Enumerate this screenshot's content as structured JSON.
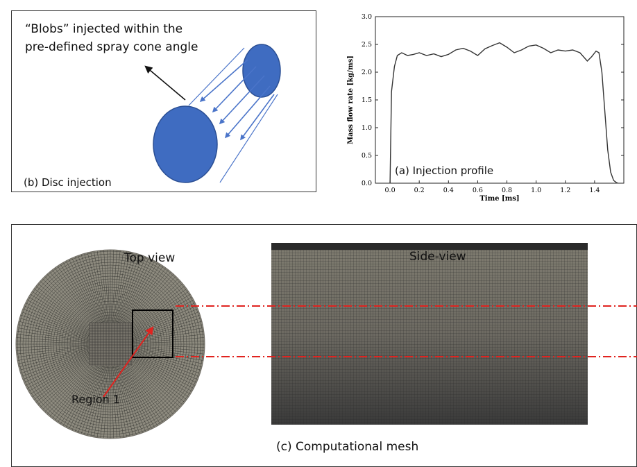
{
  "disc_panel": {
    "callout_line1": "“Blobs” injected within the",
    "callout_line2": "pre-defined  spray cone angle",
    "caption": "(b) Disc injection"
  },
  "colors": {
    "disc_fill": "#3f6cc1",
    "disc_stroke": "#2b4f94",
    "arrow": "#4a74c9",
    "mesh_bg": "#8d8a7e",
    "mesh_line": "#2c2c2c",
    "highlight": "#e0231f"
  },
  "chart_data": {
    "type": "line",
    "title": "",
    "annotation": "(a) Injection profile",
    "xlabel": "Time [ms]",
    "ylabel": "Mass flow rate [kg/ms]",
    "xlim": [
      -0.1,
      1.6
    ],
    "ylim": [
      0.0,
      3.0
    ],
    "xticks": [
      "0.0",
      "0.2",
      "0.4",
      "0.6",
      "0.8",
      "1.0",
      "1.2",
      "1.4"
    ],
    "yticks": [
      "0.0",
      "0.5",
      "1.0",
      "1.5",
      "2.0",
      "2.5",
      "3.0"
    ],
    "grid": false,
    "series": [
      {
        "x": [
          0.0,
          0.01,
          0.03,
          0.05,
          0.08,
          0.12,
          0.16,
          0.2,
          0.25,
          0.3,
          0.35,
          0.4,
          0.45,
          0.5,
          0.55,
          0.6,
          0.65,
          0.7,
          0.75,
          0.8,
          0.85,
          0.9,
          0.95,
          1.0,
          1.05,
          1.1,
          1.15,
          1.2,
          1.25,
          1.3,
          1.35,
          1.38,
          1.41,
          1.43,
          1.45,
          1.47,
          1.49,
          1.51,
          1.53,
          1.55,
          1.56
        ],
        "y": [
          0.0,
          1.65,
          2.1,
          2.3,
          2.35,
          2.3,
          2.32,
          2.35,
          2.3,
          2.33,
          2.28,
          2.32,
          2.4,
          2.43,
          2.38,
          2.3,
          2.42,
          2.48,
          2.53,
          2.45,
          2.35,
          2.4,
          2.47,
          2.49,
          2.43,
          2.35,
          2.4,
          2.38,
          2.4,
          2.35,
          2.2,
          2.28,
          2.38,
          2.35,
          2.0,
          1.3,
          0.6,
          0.2,
          0.05,
          0.01,
          0.0
        ]
      }
    ]
  },
  "mesh_panel": {
    "top_view_label": "Top view",
    "side_view_label": "Side-view",
    "region_label": "Region 1",
    "caption": "(c) Computational mesh"
  }
}
